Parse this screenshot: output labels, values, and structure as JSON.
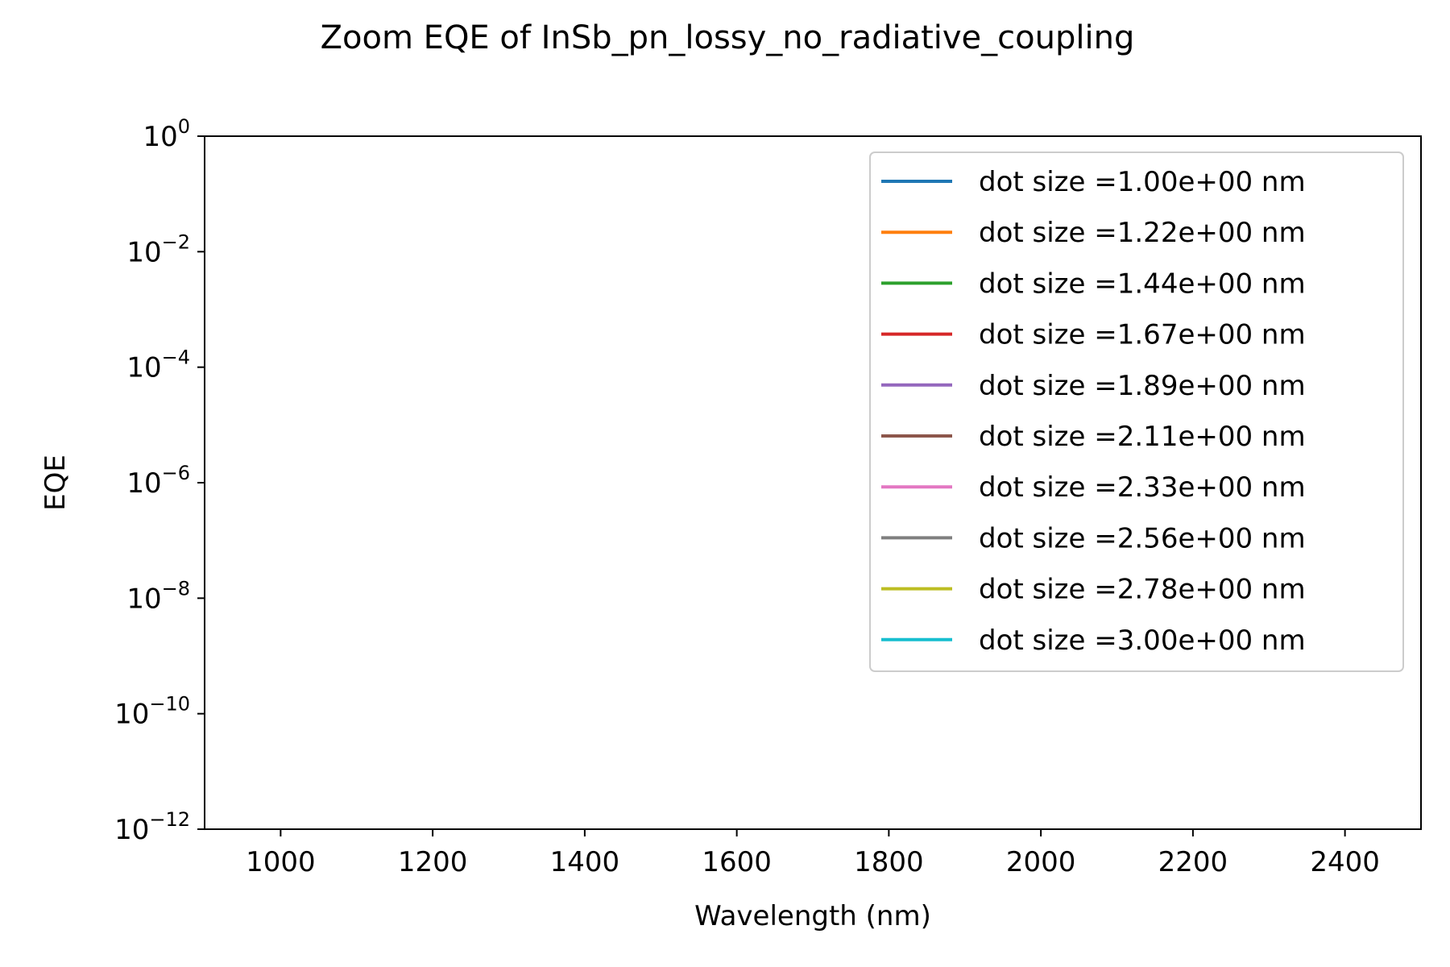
{
  "chart_data": {
    "type": "line",
    "title": "Zoom EQE of InSb_pn_lossy_no_radiative_coupling",
    "xlabel": "Wavelength (nm)",
    "ylabel": "EQE",
    "xlim": [
      900,
      2500
    ],
    "ylim": [
      1e-12,
      1
    ],
    "yscale": "log",
    "grid": false,
    "legend_position": "top-right",
    "x_ticks": [
      "1000",
      "1200",
      "1400",
      "1600",
      "1800",
      "2000",
      "2200",
      "2400"
    ],
    "y_ticks": [
      {
        "base": "10",
        "exp": "0"
      },
      {
        "base": "10",
        "exp": "−2"
      },
      {
        "base": "10",
        "exp": "−4"
      },
      {
        "base": "10",
        "exp": "−6"
      },
      {
        "base": "10",
        "exp": "−8"
      },
      {
        "base": "10",
        "exp": "−10"
      },
      {
        "base": "10",
        "exp": "−12"
      }
    ],
    "series": [
      {
        "name": "dot size =1.00e+00 nm",
        "color": "#1f77b4",
        "x": [],
        "y": []
      },
      {
        "name": "dot size =1.22e+00 nm",
        "color": "#ff7f0e",
        "x": [],
        "y": []
      },
      {
        "name": "dot size =1.44e+00 nm",
        "color": "#2ca02c",
        "x": [],
        "y": []
      },
      {
        "name": "dot size =1.67e+00 nm",
        "color": "#d62728",
        "x": [],
        "y": []
      },
      {
        "name": "dot size =1.89e+00 nm",
        "color": "#9467bd",
        "x": [],
        "y": []
      },
      {
        "name": "dot size =2.11e+00 nm",
        "color": "#8c564b",
        "x": [],
        "y": []
      },
      {
        "name": "dot size =2.33e+00 nm",
        "color": "#e377c2",
        "x": [],
        "y": []
      },
      {
        "name": "dot size =2.56e+00 nm",
        "color": "#7f7f7f",
        "x": [],
        "y": []
      },
      {
        "name": "dot size =2.78e+00 nm",
        "color": "#bcbd22",
        "x": [],
        "y": []
      },
      {
        "name": "dot size =3.00e+00 nm",
        "color": "#17becf",
        "x": [],
        "y": []
      }
    ]
  }
}
